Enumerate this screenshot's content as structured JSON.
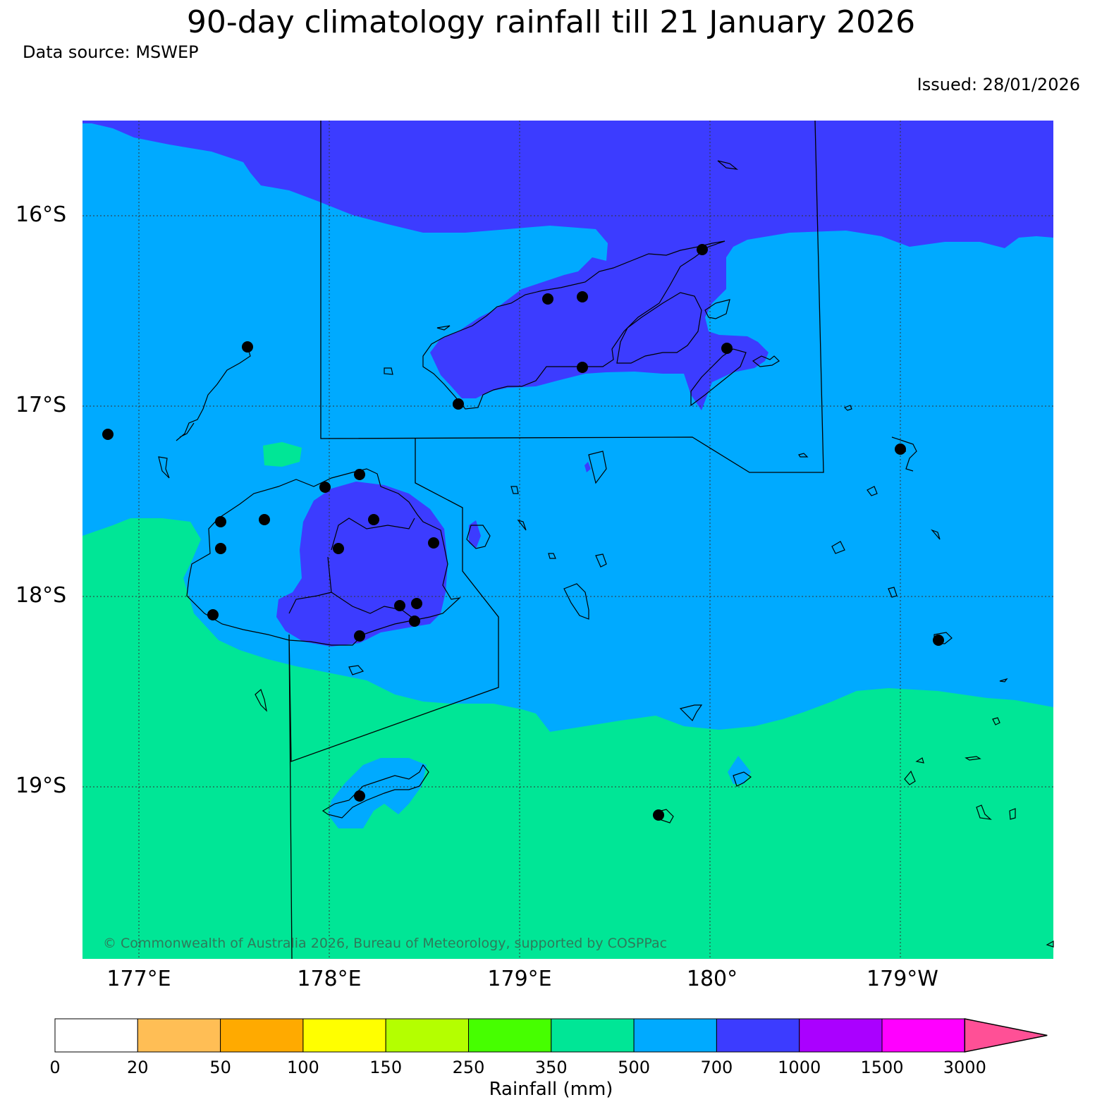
{
  "header": {
    "title": "90-day climatology rainfall till 21 January 2026",
    "source": "Data source: MSWEP",
    "issued": "Issued: 28/01/2026"
  },
  "map": {
    "lat_labels": [
      "16°S",
      "17°S",
      "18°S",
      "19°S"
    ],
    "lon_labels": [
      "177°E",
      "178°E",
      "179°E",
      "180°",
      "179°W"
    ],
    "copyright": "© Commonwealth of Australia 2026, Bureau of Meteorology, supported by COSPPac",
    "colors": {
      "zone_350_500": "#00e696",
      "zone_500_700": "#00aaff",
      "zone_700_1000": "#3c3cff",
      "station": "#000000",
      "coast": "#000000"
    }
  },
  "legend": {
    "label": "Rainfall (mm)",
    "ticks": [
      "0",
      "20",
      "50",
      "100",
      "150",
      "250",
      "350",
      "500",
      "700",
      "1000",
      "1500",
      "3000"
    ],
    "colors": [
      "#ffffff",
      "#ffbe55",
      "#ffaa00",
      "#ffff00",
      "#b4ff00",
      "#46ff00",
      "#00e696",
      "#00aaff",
      "#3c3cff",
      "#aa00ff",
      "#ff00ff"
    ],
    "extend_color": "#ff5096"
  }
}
